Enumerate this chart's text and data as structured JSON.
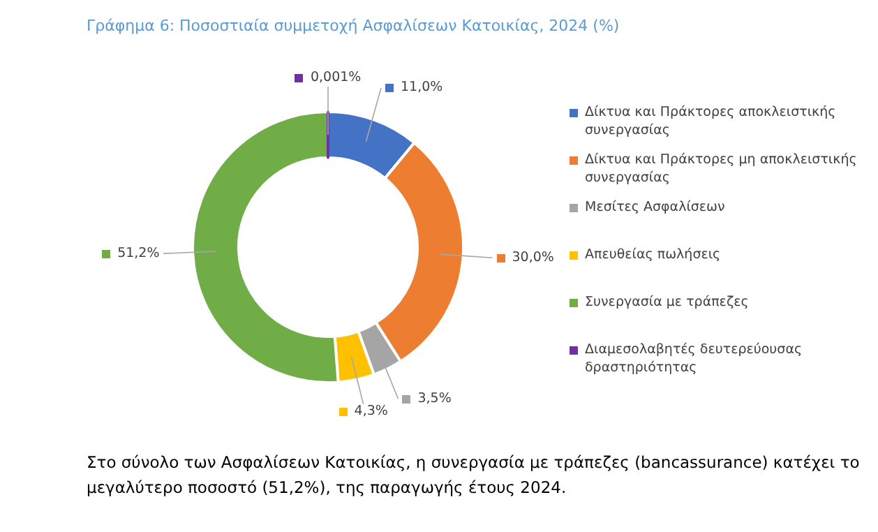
{
  "chart_data": {
    "type": "donut",
    "title": "Γράφημα 6:  Ποσοστιαία συμμετοχή Ασφαλίσεων Κατοικίας, 2024 (%)",
    "categories": [
      "Δίκτυα και Πράκτορες αποκλειστικής συνεργασίας",
      "Δίκτυα και Πράκτορες μη αποκλειστικής συνεργασίας",
      "Μεσίτες Ασφαλίσεων",
      "Απευθείας πωλήσεις",
      "Συνεργασία με τράπεζες",
      "Διαμεσολαβητές δευτερεύουσας δραστηριότητας"
    ],
    "values": [
      11.0,
      30.0,
      3.5,
      4.3,
      51.2,
      0.001
    ],
    "value_labels": [
      "11,0%",
      "30,0%",
      "3,5%",
      "4,3%",
      "51,2%",
      "0,001%"
    ],
    "colors": [
      "#4472c4",
      "#ed7d31",
      "#a5a5a5",
      "#ffc000",
      "#70ad47",
      "#7030a0"
    ],
    "legend": "right",
    "annotations": [
      "Στο σύνολο των Ασφαλίσεων Κατοικίας, η συνεργασία με τράπεζες (bancassurance) κατέχει το μεγαλύτερο ποσοστό (51,2%), της παραγωγής έτους 2024."
    ]
  }
}
